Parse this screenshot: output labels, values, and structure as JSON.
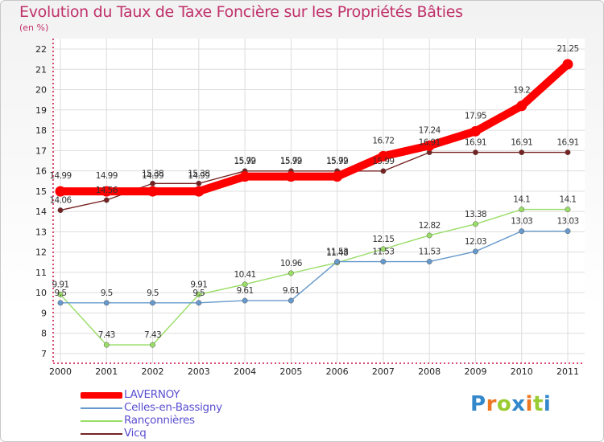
{
  "header": {
    "title": "Evolution du Taux de Taxe Foncière sur les Propriétés Bâties",
    "subtitle": "(en %)"
  },
  "legend": [
    {
      "label": "LAVERNOY",
      "color": "#ff0000"
    },
    {
      "label": "Celles-en-Bassigny",
      "color": "#6699cc"
    },
    {
      "label": "Rançonnières",
      "color": "#99dd66"
    },
    {
      "label": "Vicq",
      "color": "#772222"
    }
  ],
  "logo": {
    "letters": [
      "P",
      "r",
      "o",
      "x",
      "i",
      "t",
      "i"
    ],
    "colors": [
      "#3388cc",
      "#ee7722",
      "#99cc33",
      "#3388cc",
      "#ee7722",
      "#99cc33",
      "#3388cc"
    ]
  },
  "chart_data": {
    "type": "line",
    "title": "Evolution du Taux de Taxe Foncière sur les Propriétés Bâties",
    "ylabel": "(en %)",
    "x": [
      "2000",
      "2001",
      "2002",
      "2003",
      "2004",
      "2005",
      "2006",
      "2007",
      "2008",
      "2009",
      "2010",
      "2011"
    ],
    "ylim": [
      7,
      22
    ],
    "yticks": [
      "7",
      "8",
      "9",
      "10",
      "11",
      "12",
      "13",
      "14",
      "15",
      "16",
      "17",
      "18",
      "19",
      "20",
      "21",
      "22"
    ],
    "grid": true,
    "series": [
      {
        "name": "LAVERNOY",
        "color": "#ff0000",
        "values": [
          14.99,
          14.99,
          14.99,
          14.99,
          15.72,
          15.72,
          15.72,
          16.72,
          17.24,
          17.95,
          19.2,
          21.25
        ],
        "labels": [
          "14.99",
          "14.99",
          "14.99",
          "14.99",
          "15.72",
          "15.72",
          "15.72",
          "16.72",
          "17.24",
          "17.95",
          "19.2",
          "21.25"
        ]
      },
      {
        "name": "Celles-en-Bassigny",
        "color": "#6699cc",
        "values": [
          9.5,
          9.5,
          9.5,
          9.5,
          9.61,
          9.61,
          11.53,
          11.53,
          11.53,
          12.03,
          13.03,
          13.03
        ],
        "labels": [
          "9.5",
          "9.5",
          "9.5",
          "9.5",
          "9.61",
          "9.61",
          "11.53",
          "11.53",
          "11.53",
          "12.03",
          "13.03",
          "13.03"
        ]
      },
      {
        "name": "Rançonnières",
        "color": "#99dd66",
        "values": [
          9.91,
          7.43,
          7.43,
          9.91,
          10.41,
          10.96,
          11.48,
          12.15,
          12.82,
          13.38,
          14.1,
          14.1
        ],
        "labels": [
          "9.91",
          "7.43",
          "7.43",
          "9.91",
          "10.41",
          "10.96",
          "11.48",
          "12.15",
          "12.82",
          "13.38",
          "14.1",
          "14.1"
        ]
      },
      {
        "name": "Vicq",
        "color": "#772222",
        "values": [
          14.06,
          14.56,
          15.38,
          15.38,
          15.99,
          15.99,
          15.99,
          15.99,
          16.91,
          16.91,
          16.91,
          16.91
        ],
        "labels": [
          "14.06",
          "14.56",
          "15.38",
          "15.38",
          "15.99",
          "15.99",
          "15.99",
          "15.99",
          "16.91",
          "16.91",
          "16.91",
          "16.91"
        ]
      }
    ]
  }
}
